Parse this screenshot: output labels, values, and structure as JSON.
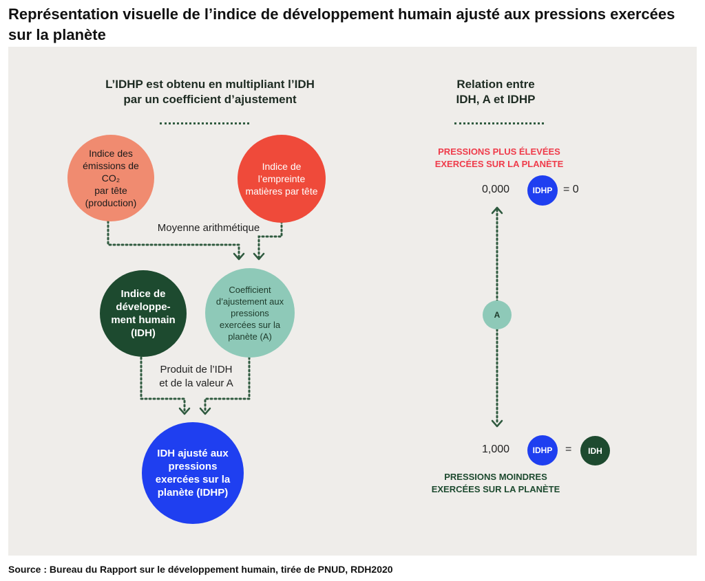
{
  "title": "Représentation visuelle de l’indice de développement humain ajusté aux pressions exercées sur la planète",
  "source": "Source : Bureau du Rapport sur le développement humain, tirée de PNUD, RDH2020",
  "left": {
    "heading": "L’IDHP est obtenu en multipliant l’IDH\npar un coefficient d’ajustement",
    "co2": "Indice des\némissions de CO₂\npar tête\n(production)",
    "material": "Indice de\nl’empreinte\nmatières par tête",
    "mean_label": "Moyenne arithmétique",
    "idh": "Indice de\ndéveloppe-\nment humain\n(IDH)",
    "coef": "Coefficient\nd’ajustement aux\npressions\nexercées sur la\nplanète (A)",
    "product_label": "Produit de l’IDH\net de la valeur A",
    "idhp": "IDH ajusté aux\npressions\nexercées sur la\nplanète (IDHP)"
  },
  "right": {
    "heading": "Relation entre\nIDH, A et IDHP",
    "top_text": "PRESSIONS PLUS ÉLEVÉES\nEXERCÉES SUR LA PLANÈTE",
    "top_value": "0,000",
    "top_badge": "IDHP",
    "top_eq": "= 0",
    "a_badge": "A",
    "bottom_value": "1,000",
    "bottom_badge": "IDHP",
    "bottom_eq": "=",
    "idh_badge": "IDH",
    "bottom_text": "PRESSIONS MOINDRES\nEXERCÉES SUR LA PLANÈTE"
  },
  "colors": {
    "co2": "#f08b70",
    "material": "#ef4a3a",
    "idh": "#1d4a2f",
    "coef": "#8ec9b8",
    "idhp": "#1f3ff0",
    "top_text": "#ef3b4a",
    "bottom_text": "#1d4a2f"
  }
}
